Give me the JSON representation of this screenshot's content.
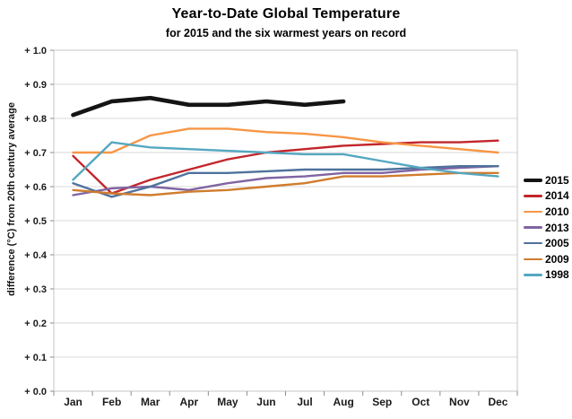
{
  "title": "Year-to-Date Global Temperature",
  "subtitle": "for 2015 and the six warmest years on record",
  "chart_data": {
    "type": "line",
    "title": "Year-to-Date Global Temperature",
    "subtitle": "for 2015 and the six warmest years on record",
    "xlabel": "",
    "ylabel": "difference (°C) from 20th century average",
    "ylim": [
      0.0,
      1.0
    ],
    "ytick_step": 0.1,
    "ytick_labels_top_to_bottom": [
      "+ 1.0",
      "+ 0.9",
      "+ 0.8",
      "+ 0.7",
      "+ 0.6",
      "+ 0.5",
      "+ 0.4",
      "+ 0.3",
      "+ 0.2",
      "+ 0.1",
      "+ 0.0"
    ],
    "grid": "horizontal",
    "legend_position": "right-outside",
    "categories": [
      "Jan",
      "Feb",
      "Mar",
      "Apr",
      "May",
      "Jun",
      "Jul",
      "Aug",
      "Sep",
      "Oct",
      "Nov",
      "Dec"
    ],
    "series": [
      {
        "name": "2015",
        "color": "#141414",
        "stroke_width": 4.6,
        "values": [
          0.81,
          0.85,
          0.86,
          0.84,
          0.84,
          0.85,
          0.84,
          0.85,
          null,
          null,
          null,
          null
        ]
      },
      {
        "name": "2014",
        "color": "#c2262b",
        "stroke_width": 2.4,
        "values": [
          0.69,
          0.58,
          0.62,
          0.65,
          0.68,
          0.7,
          0.71,
          0.72,
          0.725,
          0.73,
          0.73,
          0.735
        ]
      },
      {
        "name": "2010",
        "color": "#f79646",
        "stroke_width": 2.4,
        "values": [
          0.7,
          0.7,
          0.75,
          0.77,
          0.77,
          0.76,
          0.755,
          0.745,
          0.73,
          0.72,
          0.71,
          0.7
        ]
      },
      {
        "name": "2013",
        "color": "#8064a2",
        "stroke_width": 2.4,
        "values": [
          0.575,
          0.595,
          0.6,
          0.59,
          0.61,
          0.625,
          0.63,
          0.64,
          0.64,
          0.65,
          0.655,
          0.66
        ]
      },
      {
        "name": "2005",
        "color": "#4f729c",
        "stroke_width": 2.4,
        "values": [
          0.61,
          0.57,
          0.6,
          0.64,
          0.64,
          0.645,
          0.65,
          0.65,
          0.65,
          0.655,
          0.66,
          0.66
        ]
      },
      {
        "name": "2009",
        "color": "#d07c2e",
        "stroke_width": 2.4,
        "values": [
          0.59,
          0.58,
          0.575,
          0.585,
          0.59,
          0.6,
          0.61,
          0.63,
          0.63,
          0.635,
          0.64,
          0.64
        ]
      },
      {
        "name": "1998",
        "color": "#54a7c0",
        "stroke_width": 2.4,
        "values": [
          0.62,
          0.73,
          0.715,
          0.71,
          0.705,
          0.7,
          0.695,
          0.695,
          0.675,
          0.655,
          0.64,
          0.63
        ]
      }
    ]
  }
}
